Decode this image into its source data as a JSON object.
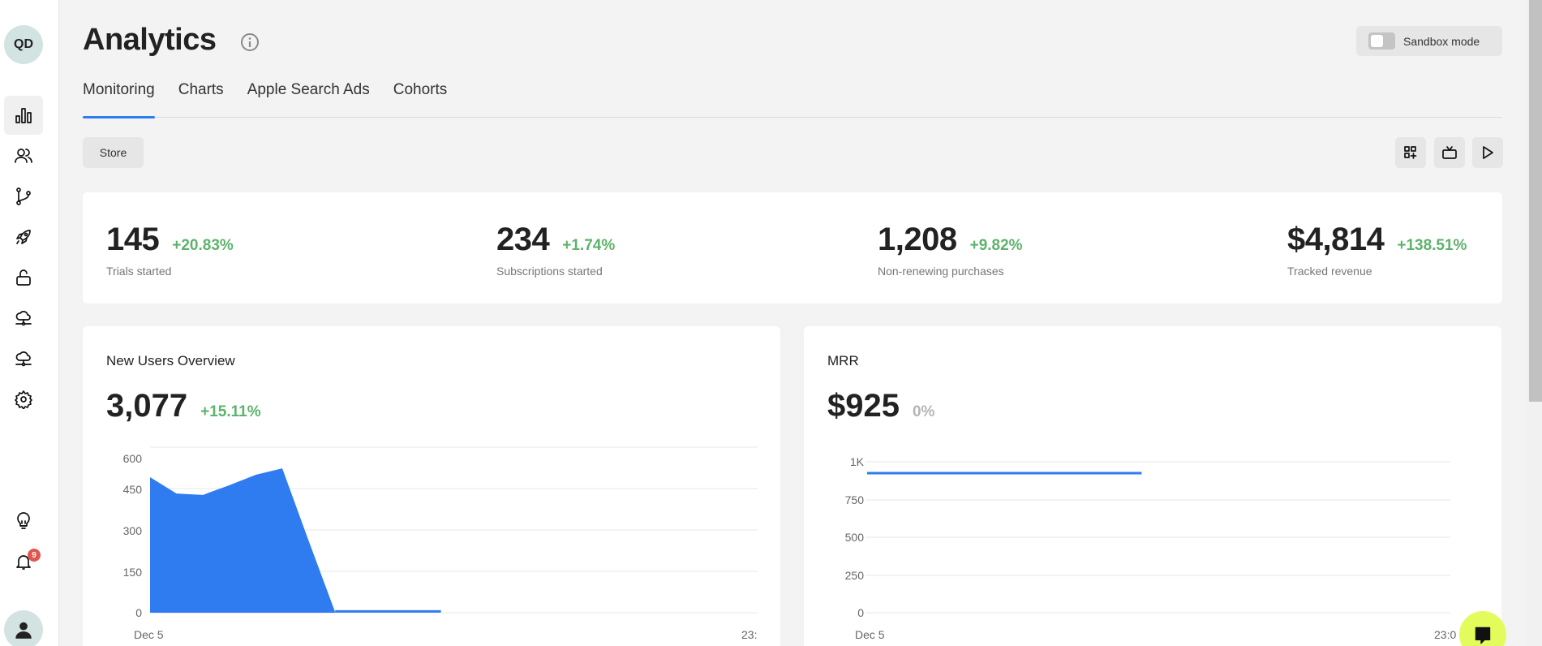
{
  "sidebar": {
    "org_initials": "QD",
    "items": [
      {
        "name": "analytics",
        "icon": "bar-chart-icon",
        "active": true
      },
      {
        "name": "customers",
        "icon": "users-icon",
        "active": false
      },
      {
        "name": "integrations",
        "icon": "branch-icon",
        "active": false
      },
      {
        "name": "launch",
        "icon": "rocket-icon",
        "active": false
      },
      {
        "name": "entitlements",
        "icon": "unlock-icon",
        "active": false
      },
      {
        "name": "cloud-a",
        "icon": "cloud-network-icon",
        "active": false
      },
      {
        "name": "cloud-b",
        "icon": "cloud-network-icon",
        "active": false
      },
      {
        "name": "settings",
        "icon": "gear-icon",
        "active": false
      }
    ],
    "bottom": {
      "ideas_icon": "lightbulb-icon",
      "notifications_icon": "bell-icon",
      "notification_count": "9",
      "user_icon": "user-icon"
    }
  },
  "header": {
    "title": "Analytics",
    "info_icon": "info-icon",
    "sandbox_label": "Sandbox mode",
    "sandbox_enabled": false
  },
  "tabs": [
    {
      "label": "Monitoring",
      "active": true
    },
    {
      "label": "Charts",
      "active": false
    },
    {
      "label": "Apple Search Ads",
      "active": false
    },
    {
      "label": "Cohorts",
      "active": false
    }
  ],
  "toolbar": {
    "store_label": "Store",
    "actions": [
      "add-widget-icon",
      "tv-icon",
      "play-icon"
    ]
  },
  "kpis": [
    {
      "value": "145",
      "delta": "+20.83%",
      "label": "Trials started"
    },
    {
      "value": "234",
      "delta": "+1.74%",
      "label": "Subscriptions started"
    },
    {
      "value": "1,208",
      "delta": "+9.82%",
      "label": "Non-renewing purchases"
    },
    {
      "value": "$4,814",
      "delta": "+138.51%",
      "label": "Tracked revenue"
    }
  ],
  "cards": {
    "new_users": {
      "title": "New Users Overview",
      "value": "3,077",
      "delta": "+15.11%",
      "x_start": "Dec 5",
      "x_end": "23:"
    },
    "mrr": {
      "title": "MRR",
      "value": "$925",
      "delta": "0%",
      "x_start": "Dec 5",
      "x_end": "23:0"
    }
  },
  "colors": {
    "accent": "#2f7bf0",
    "positive": "#5db36b",
    "neutral": "#b5b5b5",
    "badge": "#e0574f",
    "chat": "#e4fb5c"
  },
  "chart_data": [
    {
      "type": "area",
      "title": "New Users Overview",
      "xlabel": "",
      "ylabel": "",
      "x_tick_labels": [
        "Dec 5",
        "23:"
      ],
      "y_ticks": [
        0,
        150,
        300,
        450,
        600
      ],
      "ylim": [
        0,
        600
      ],
      "grid": true,
      "series": [
        {
          "name": "New Users",
          "color": "#2f7bf0",
          "values": [
            491,
            432,
            427,
            462,
            500,
            523,
            260,
            2,
            2,
            2,
            2,
            2
          ]
        }
      ]
    },
    {
      "type": "line",
      "title": "MRR",
      "xlabel": "",
      "ylabel": "",
      "x_tick_labels": [
        "Dec 5",
        "23:0"
      ],
      "y_ticks": [
        0,
        250,
        500,
        750,
        1000
      ],
      "y_tick_labels": [
        "0",
        "250",
        "500",
        "750",
        "1K"
      ],
      "ylim": [
        0,
        1000
      ],
      "grid": true,
      "series": [
        {
          "name": "MRR",
          "color": "#2f7bf0",
          "values": [
            925,
            925,
            925,
            925,
            925,
            925,
            925,
            925,
            925,
            925
          ]
        }
      ]
    }
  ]
}
